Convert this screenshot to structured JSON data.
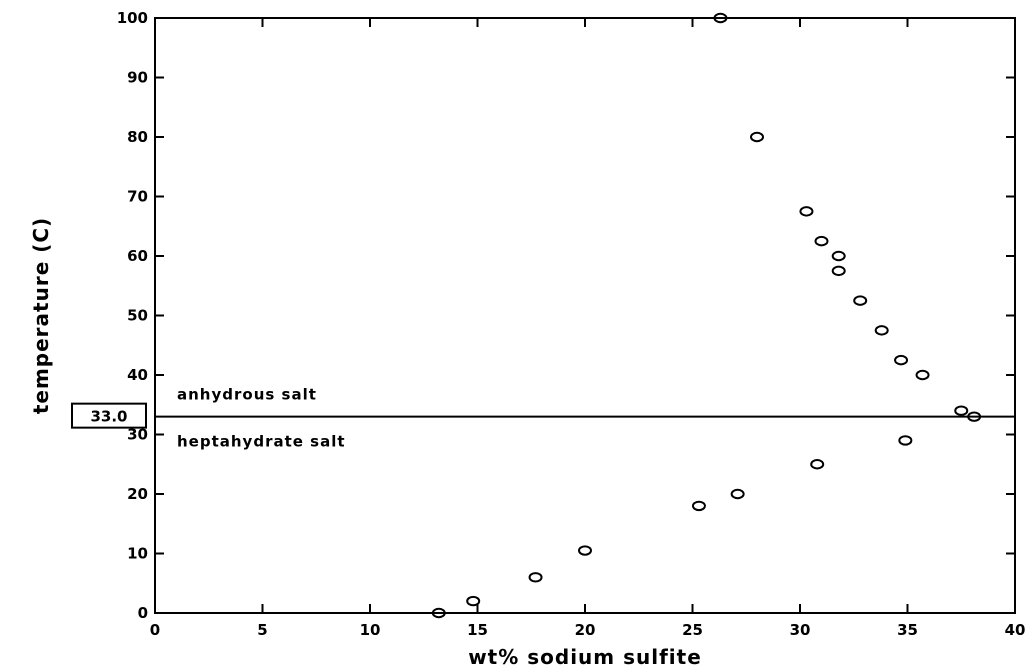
{
  "chart_data": {
    "type": "scatter",
    "xlabel": "wt% sodium sulfite",
    "ylabel": "temperature (C)",
    "xlim": [
      0,
      40
    ],
    "ylim": [
      0,
      100
    ],
    "xticks": [
      0,
      5,
      10,
      15,
      20,
      25,
      30,
      35,
      40
    ],
    "yticks": [
      0,
      10,
      20,
      30,
      40,
      50,
      60,
      70,
      80,
      90,
      100
    ],
    "grid": false,
    "marker": "open-circle",
    "points": [
      {
        "x": 13.2,
        "y": 0
      },
      {
        "x": 14.8,
        "y": 2
      },
      {
        "x": 17.7,
        "y": 6
      },
      {
        "x": 20.0,
        "y": 10.5
      },
      {
        "x": 25.3,
        "y": 18
      },
      {
        "x": 27.1,
        "y": 20
      },
      {
        "x": 30.8,
        "y": 25
      },
      {
        "x": 34.9,
        "y": 29
      },
      {
        "x": 37.5,
        "y": 34
      },
      {
        "x": 38.1,
        "y": 33
      },
      {
        "x": 35.7,
        "y": 40
      },
      {
        "x": 34.7,
        "y": 42.5
      },
      {
        "x": 33.8,
        "y": 47.5
      },
      {
        "x": 32.8,
        "y": 52.5
      },
      {
        "x": 31.8,
        "y": 57.5
      },
      {
        "x": 31.8,
        "y": 60
      },
      {
        "x": 31.0,
        "y": 62.5
      },
      {
        "x": 30.3,
        "y": 67.5
      },
      {
        "x": 28.0,
        "y": 80
      },
      {
        "x": 26.3,
        "y": 100
      }
    ],
    "reference_line": {
      "y": 33.0,
      "label": "33.0"
    },
    "annotations": {
      "above": "anhydrous salt",
      "below": "heptahydrate salt"
    }
  }
}
